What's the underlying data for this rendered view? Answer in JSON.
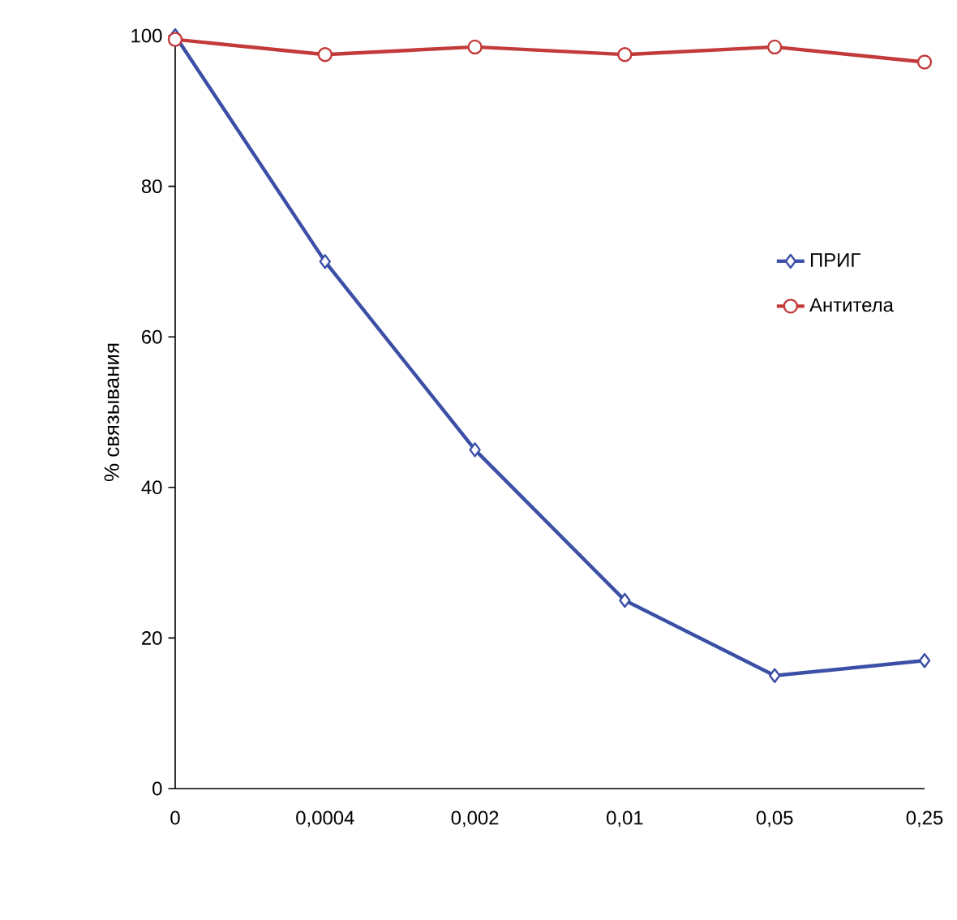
{
  "chart_data": {
    "type": "line",
    "ylabel": "% связывания",
    "categories": [
      "0",
      "0,0004",
      "0,002",
      "0,01",
      "0,05",
      "0,25"
    ],
    "ylim": [
      0,
      100
    ],
    "yticks": [
      0,
      20,
      40,
      60,
      80,
      100
    ],
    "grid": false,
    "legend": "right",
    "line_style": "solid",
    "series": [
      {
        "name": "ПРИГ",
        "color": "#3b4fa6",
        "marker": "diamond",
        "values": [
          100,
          70,
          45,
          25,
          15,
          17
        ]
      },
      {
        "name": "Антитела",
        "color": "#c23b3a",
        "marker": "circle",
        "values": [
          99.5,
          97.5,
          98.5,
          97.5,
          98.5,
          96.5
        ]
      }
    ]
  }
}
